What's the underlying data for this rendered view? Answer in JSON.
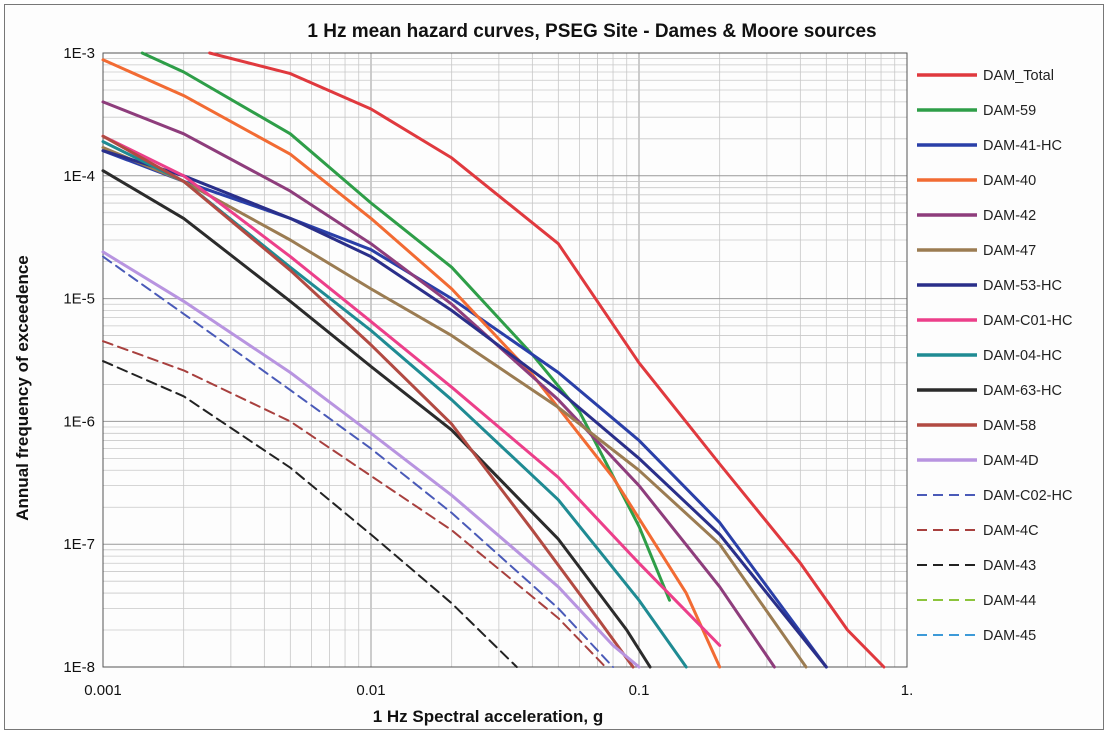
{
  "chart_data": {
    "type": "line",
    "title": "1 Hz mean hazard curves, PSEG Site - Dames & Moore sources",
    "xlabel": "1 Hz Spectral acceleration, g",
    "ylabel": "Annual frequency of exceedence",
    "x_scale": "log",
    "y_scale": "log",
    "xlim": [
      0.001,
      1
    ],
    "ylim": [
      1e-08,
      0.001
    ],
    "x_ticks": [
      {
        "value": 0.001,
        "label": "0.001"
      },
      {
        "value": 0.01,
        "label": "0.01"
      },
      {
        "value": 0.1,
        "label": "0.1"
      },
      {
        "value": 1,
        "label": "1."
      }
    ],
    "y_ticks": [
      {
        "value": 0.001,
        "label": "1E-3"
      },
      {
        "value": 0.0001,
        "label": "1E-4"
      },
      {
        "value": 1e-05,
        "label": "1E-5"
      },
      {
        "value": 1e-06,
        "label": "1E-6"
      },
      {
        "value": 1e-07,
        "label": "1E-7"
      },
      {
        "value": 1e-08,
        "label": "1E-8"
      }
    ],
    "grid": true,
    "legend_position": "right",
    "series": [
      {
        "name": "DAM_Total",
        "color": "#e0393e",
        "dash": "solid",
        "x": [
          0.0025,
          0.005,
          0.01,
          0.02,
          0.05,
          0.1,
          0.2,
          0.4,
          0.6,
          0.82
        ],
        "y": [
          0.001,
          0.00068,
          0.00035,
          0.00014,
          2.8e-05,
          3e-06,
          4.5e-07,
          7e-08,
          2e-08,
          1e-08
        ]
      },
      {
        "name": "DAM-59",
        "color": "#2e9e48",
        "dash": "solid",
        "x": [
          0.0014,
          0.002,
          0.005,
          0.01,
          0.02,
          0.04,
          0.06,
          0.1,
          0.13
        ],
        "y": [
          0.001,
          0.0007,
          0.00022,
          6e-05,
          1.8e-05,
          3.5e-06,
          1.2e-06,
          1.4e-07,
          3.5e-08
        ]
      },
      {
        "name": "DAM-41-HC",
        "color": "#2a3fa8",
        "dash": "solid",
        "x": [
          0.001,
          0.002,
          0.005,
          0.01,
          0.02,
          0.05,
          0.1,
          0.2,
          0.5
        ],
        "y": [
          0.00016,
          9e-05,
          4.5e-05,
          2.5e-05,
          1e-05,
          2.5e-06,
          7e-07,
          1.5e-07,
          1e-08
        ]
      },
      {
        "name": "DAM-40",
        "color": "#f26b33",
        "dash": "solid",
        "x": [
          0.001,
          0.002,
          0.005,
          0.01,
          0.02,
          0.04,
          0.08,
          0.15,
          0.2
        ],
        "y": [
          0.00088,
          0.00045,
          0.00015,
          4.5e-05,
          1.2e-05,
          2.4e-06,
          3.5e-07,
          4e-08,
          1e-08
        ]
      },
      {
        "name": "DAM-42",
        "color": "#8e3d7c",
        "dash": "solid",
        "x": [
          0.001,
          0.002,
          0.005,
          0.01,
          0.02,
          0.05,
          0.1,
          0.2,
          0.32
        ],
        "y": [
          0.0004,
          0.00022,
          7.5e-05,
          2.8e-05,
          9e-06,
          1.5e-06,
          3e-07,
          4.5e-08,
          1e-08
        ]
      },
      {
        "name": "DAM-47",
        "color": "#9b7c52",
        "dash": "solid",
        "x": [
          0.001,
          0.002,
          0.005,
          0.01,
          0.02,
          0.05,
          0.1,
          0.2,
          0.42
        ],
        "y": [
          0.00017,
          9e-05,
          3e-05,
          1.2e-05,
          5e-06,
          1.3e-06,
          4e-07,
          1e-07,
          1e-08
        ]
      },
      {
        "name": "DAM-53-HC",
        "color": "#2a2f8a",
        "dash": "solid",
        "x": [
          0.001,
          0.002,
          0.005,
          0.01,
          0.02,
          0.05,
          0.1,
          0.2,
          0.5
        ],
        "y": [
          0.00016,
          0.0001,
          4.5e-05,
          2.2e-05,
          8e-06,
          1.8e-06,
          5e-07,
          1.2e-07,
          1e-08
        ]
      },
      {
        "name": "DAM-C01-HC",
        "color": "#ec3f8a",
        "dash": "solid",
        "x": [
          0.001,
          0.002,
          0.005,
          0.01,
          0.02,
          0.05,
          0.1,
          0.2
        ],
        "y": [
          0.00021,
          0.0001,
          2.2e-05,
          6.5e-06,
          1.9e-06,
          3.5e-07,
          7e-08,
          1.5e-08
        ]
      },
      {
        "name": "DAM-04-HC",
        "color": "#1f8b93",
        "dash": "solid",
        "x": [
          0.001,
          0.002,
          0.005,
          0.01,
          0.02,
          0.05,
          0.1,
          0.15
        ],
        "y": [
          0.00019,
          9e-05,
          1.8e-05,
          5.5e-06,
          1.5e-06,
          2.3e-07,
          3.5e-08,
          1e-08
        ]
      },
      {
        "name": "DAM-63-HC",
        "color": "#2b2b2b",
        "dash": "solid",
        "x": [
          0.001,
          0.002,
          0.005,
          0.01,
          0.02,
          0.05,
          0.09,
          0.11
        ],
        "y": [
          0.00011,
          4.5e-05,
          9.5e-06,
          2.8e-06,
          8.5e-07,
          1.1e-07,
          2e-08,
          1e-08
        ]
      },
      {
        "name": "DAM-58",
        "color": "#b24a42",
        "dash": "solid",
        "x": [
          0.001,
          0.002,
          0.005,
          0.01,
          0.02,
          0.04,
          0.07,
          0.095
        ],
        "y": [
          0.00021,
          9e-05,
          1.7e-05,
          4.2e-06,
          9.5e-07,
          1.3e-07,
          2.5e-08,
          1e-08
        ]
      },
      {
        "name": "DAM-4D",
        "color": "#b894e0",
        "dash": "solid",
        "x": [
          0.001,
          0.002,
          0.005,
          0.01,
          0.02,
          0.05,
          0.08,
          0.1
        ],
        "y": [
          2.4e-05,
          9.5e-06,
          2.5e-06,
          8e-07,
          2.5e-07,
          4.5e-08,
          1.5e-08,
          1e-08
        ]
      },
      {
        "name": "DAM-C02-HC",
        "color": "#4a5ab8",
        "dash": "dashed",
        "x": [
          0.001,
          0.002,
          0.005,
          0.01,
          0.02,
          0.05,
          0.08
        ],
        "y": [
          2.2e-05,
          7.5e-06,
          1.8e-06,
          6e-07,
          1.8e-07,
          3e-08,
          1e-08
        ]
      },
      {
        "name": "DAM-4C",
        "color": "#a8403e",
        "dash": "dashed",
        "x": [
          0.001,
          0.002,
          0.005,
          0.01,
          0.02,
          0.05,
          0.075
        ],
        "y": [
          4.5e-06,
          2.6e-06,
          1e-06,
          3.6e-07,
          1.3e-07,
          2.5e-08,
          1e-08
        ]
      },
      {
        "name": "DAM-43",
        "color": "#222222",
        "dash": "dashed",
        "x": [
          0.001,
          0.002,
          0.005,
          0.01,
          0.02,
          0.035
        ],
        "y": [
          3.1e-06,
          1.6e-06,
          4.2e-07,
          1.2e-07,
          3.3e-08,
          1e-08
        ]
      },
      {
        "name": "DAM-44",
        "color": "#8cc43c",
        "dash": "dashed",
        "x": [],
        "y": []
      },
      {
        "name": "DAM-45",
        "color": "#3d9ad8",
        "dash": "dashed",
        "x": [],
        "y": []
      }
    ]
  }
}
